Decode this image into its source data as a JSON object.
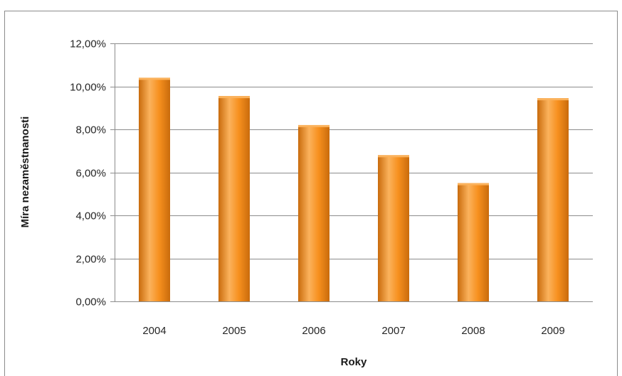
{
  "chart_data": {
    "type": "bar",
    "categories": [
      "2004",
      "2005",
      "2006",
      "2007",
      "2008",
      "2009"
    ],
    "values": [
      10.4,
      9.55,
      8.2,
      6.8,
      5.5,
      9.45
    ],
    "title": "",
    "xlabel": "Roky",
    "ylabel": "Míra nezaměstnanosti",
    "ylim": [
      0,
      12
    ],
    "yticks": [
      "0,00%",
      "2,00%",
      "4,00%",
      "6,00%",
      "8,00%",
      "10,00%",
      "12,00%"
    ],
    "ytick_values": [
      0,
      2,
      4,
      6,
      8,
      10,
      12
    ],
    "grid": true,
    "legend": "none",
    "bar_color": "#f7901e",
    "bar_color_light": "#fbb25c",
    "bar_color_dark": "#c96b0c"
  }
}
